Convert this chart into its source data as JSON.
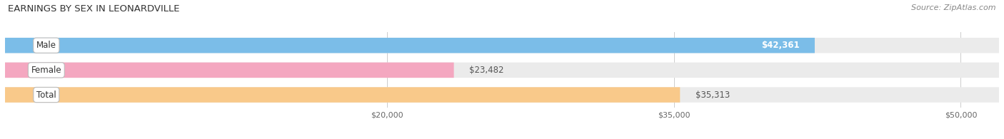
{
  "title": "EARNINGS BY SEX IN LEONARDVILLE",
  "source": "Source: ZipAtlas.com",
  "categories": [
    "Male",
    "Female",
    "Total"
  ],
  "values": [
    42361,
    23482,
    35313
  ],
  "bar_colors": [
    "#7bbde8",
    "#f4a7c0",
    "#f9c98a"
  ],
  "bar_bg_color": "#ebebeb",
  "value_labels": [
    "$42,361",
    "$23,482",
    "$35,313"
  ],
  "value_label_colors": [
    "white",
    "#555555",
    "#555555"
  ],
  "value_label_inside": [
    true,
    false,
    false
  ],
  "xmin": 0,
  "xmax": 52000,
  "xticks": [
    20000,
    35000,
    50000
  ],
  "xtick_labels": [
    "$20,000",
    "$35,000",
    "$50,000"
  ],
  "title_fontsize": 9.5,
  "bar_label_fontsize": 8.5,
  "value_fontsize": 8.5,
  "source_fontsize": 8,
  "figsize": [
    14.06,
    1.95
  ],
  "dpi": 100
}
